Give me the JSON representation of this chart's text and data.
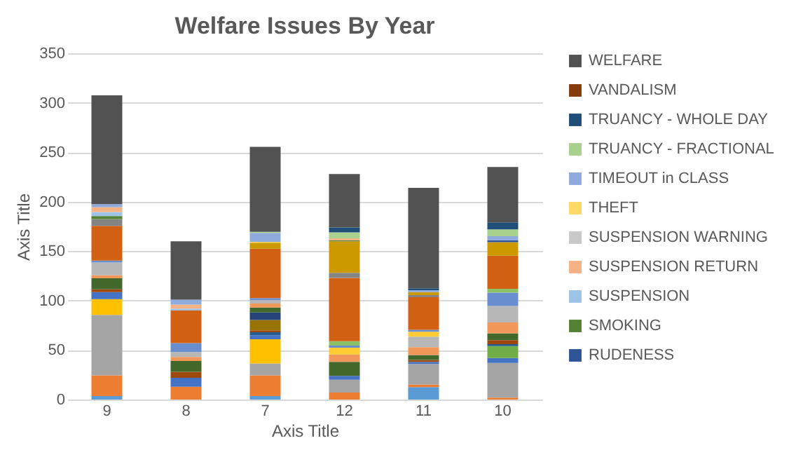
{
  "chart_data": {
    "type": "bar",
    "stacked": true,
    "title": "Welfare Issues By Year",
    "xlabel": "Axis Title",
    "ylabel": "Axis Title",
    "categories": [
      "9",
      "8",
      "7",
      "12",
      "11",
      "10"
    ],
    "ylim": [
      0,
      350
    ],
    "yticks": [
      0,
      50,
      100,
      150,
      200,
      250,
      300,
      350
    ],
    "grid": "y",
    "legend": "right",
    "series": [
      {
        "color": "#5b9bd5",
        "values": [
          3.5,
          null,
          3.5,
          null,
          12.5,
          null
        ]
      },
      {
        "color": "#ed7d31",
        "values": [
          21,
          13,
          21,
          7,
          2.5,
          2
        ]
      },
      {
        "color": "#a5a5a5",
        "values": [
          61,
          null,
          12,
          13,
          21,
          35
        ]
      },
      {
        "color": "#ffc000",
        "values": [
          16,
          null,
          24.5,
          null,
          null,
          null
        ]
      },
      {
        "color": "#4472c4",
        "values": [
          7,
          9,
          4,
          4,
          2,
          5
        ]
      },
      {
        "color": "#70ad47",
        "values": [
          null,
          null,
          null,
          null,
          null,
          12
        ]
      },
      {
        "color": "#255e91",
        "values": [
          null,
          null,
          3,
          null,
          null,
          2
        ]
      },
      {
        "color": "#9e480e",
        "values": [
          3,
          6,
          2,
          null,
          2,
          4
        ]
      },
      {
        "color": "#997300",
        "values": [
          null,
          null,
          10.5,
          null,
          null,
          null
        ]
      },
      {
        "color": "#264478",
        "values": [
          null,
          null,
          7.5,
          null,
          null,
          null
        ]
      },
      {
        "color": "#43682b",
        "values": [
          11,
          11,
          5,
          14,
          5,
          7
        ]
      },
      {
        "color": "#f1975a",
        "values": [
          3,
          4,
          4,
          7.5,
          8,
          11
        ]
      },
      {
        "color": "#b7b7b7",
        "values": [
          13,
          5,
          3.5,
          null,
          10.5,
          16.5
        ]
      },
      {
        "color": "#ffcd33",
        "values": [
          null,
          null,
          null,
          7,
          5,
          null
        ]
      },
      {
        "color": "#698ed0",
        "values": [
          2,
          9,
          2,
          2,
          2,
          13.5
        ]
      },
      {
        "color": "#8cc168",
        "values": [
          null,
          null,
          null,
          4.5,
          null,
          4
        ]
      },
      {
        "color": "#d26012",
        "values": [
          35,
          33,
          50,
          64,
          33,
          33.5
        ]
      },
      {
        "color": "#848484",
        "values": [
          7,
          null,
          null,
          5,
          2,
          null
        ]
      },
      {
        "color": "#cc9a00",
        "values": [
          null,
          null,
          6,
          32,
          3,
          13.5
        ]
      },
      {
        "name": "RUDENESS",
        "color": "#2f5597",
        "values": [
          null,
          null,
          null,
          null,
          null,
          2
        ]
      },
      {
        "name": "SMOKING",
        "color": "#548235",
        "values": [
          3,
          null,
          null,
          1,
          null,
          null
        ]
      },
      {
        "name": "SUSPENSION",
        "color": "#9dc3e6",
        "values": [
          4,
          2,
          null,
          null,
          null,
          null
        ]
      },
      {
        "name": "SUSPENSION RETURN",
        "color": "#f4b183",
        "values": [
          5,
          4,
          null,
          2,
          null,
          null
        ]
      },
      {
        "name": "SUSPENSION WARNING",
        "color": "#c9c9c9",
        "values": [
          null,
          null,
          null,
          null,
          null,
          null
        ]
      },
      {
        "name": "THEFT",
        "color": "#ffd966",
        "values": [
          null,
          null,
          1,
          null,
          null,
          null
        ]
      },
      {
        "name": "TIMEOUT in CLASS",
        "color": "#8faadc",
        "values": [
          3,
          5,
          9,
          null,
          2,
          4
        ]
      },
      {
        "name": "TRUANCY - FRACTIONAL",
        "color": "#a9d18e",
        "values": [
          null,
          null,
          1,
          6,
          null,
          7
        ]
      },
      {
        "name": "TRUANCY - WHOLE DAY",
        "color": "#1f4e79",
        "values": [
          null,
          null,
          null,
          5,
          2,
          7
        ]
      },
      {
        "name": "VANDALISM",
        "color": "#843c0c",
        "values": [
          null,
          null,
          null,
          null,
          null,
          null
        ]
      },
      {
        "name": "WELFARE",
        "color": "#525252",
        "values": [
          110,
          59,
          86,
          54,
          101.5,
          56
        ]
      }
    ]
  }
}
